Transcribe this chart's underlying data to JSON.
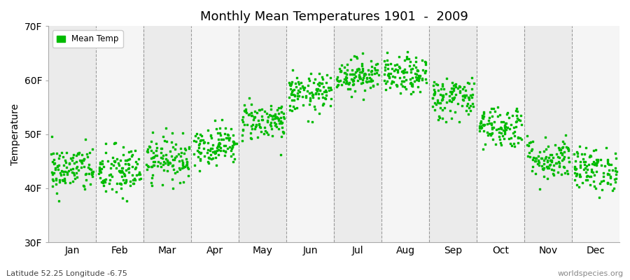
{
  "title": "Monthly Mean Temperatures 1901  -  2009",
  "ylabel": "Temperature",
  "xlabel_labels": [
    "Jan",
    "Feb",
    "Mar",
    "Apr",
    "May",
    "Jun",
    "Jul",
    "Aug",
    "Sep",
    "Oct",
    "Nov",
    "Dec"
  ],
  "bottom_left": "Latitude 52.25 Longitude -6.75",
  "bottom_right": "worldspecies.org",
  "dot_color": "#00bb00",
  "dot_size": 3,
  "ylim": [
    30,
    70
  ],
  "ytick_labels": [
    "30F",
    "40F",
    "50F",
    "60F",
    "70F"
  ],
  "ytick_values": [
    30,
    40,
    50,
    60,
    70
  ],
  "legend_label": "Mean Temp",
  "years": 109,
  "monthly_means_F": [
    43.5,
    43.0,
    45.5,
    48.0,
    52.5,
    57.5,
    61.0,
    60.8,
    56.8,
    51.5,
    45.5,
    43.5
  ],
  "monthly_stds_F": [
    2.2,
    2.5,
    2.0,
    1.8,
    1.8,
    1.8,
    1.6,
    1.7,
    2.0,
    2.0,
    2.0,
    2.0
  ],
  "bg_colors": [
    "#ebebeb",
    "#f5f5f5"
  ]
}
